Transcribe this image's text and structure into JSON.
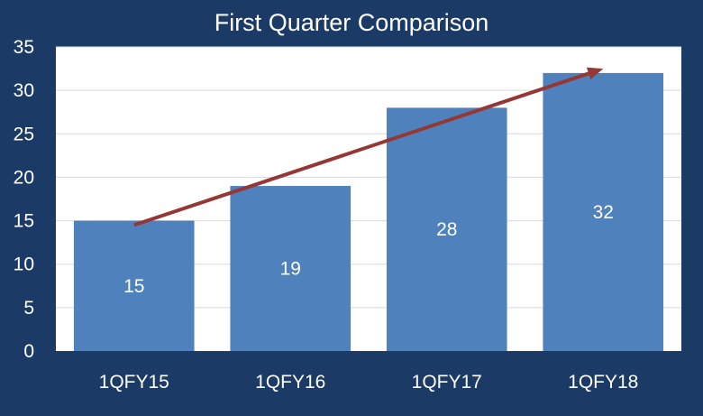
{
  "chart_data": {
    "type": "bar",
    "title": "First Quarter Comparison",
    "xlabel": "",
    "ylabel": "",
    "categories": [
      "1QFY15",
      "1QFY16",
      "1QFY17",
      "1QFY18"
    ],
    "values": [
      15,
      19,
      28,
      32
    ],
    "data_labels": [
      "15",
      "19",
      "28",
      "32"
    ],
    "ylim": [
      0,
      35
    ],
    "yticks": [
      0,
      5,
      10,
      15,
      20,
      25,
      30,
      35
    ],
    "grid": true,
    "legend": "none",
    "annotations": [
      {
        "type": "trend-arrow",
        "from": {
          "category": "1QFY15",
          "y": 14.5
        },
        "to": {
          "category": "1QFY18",
          "y": 32.5
        }
      }
    ]
  },
  "colors": {
    "background": "#1b3a66",
    "plot_area": "#ffffff",
    "bar": "#4f81bd",
    "gridline": "#d9d9d9",
    "trend_arrow": "#953735",
    "text": "#ffffff"
  }
}
